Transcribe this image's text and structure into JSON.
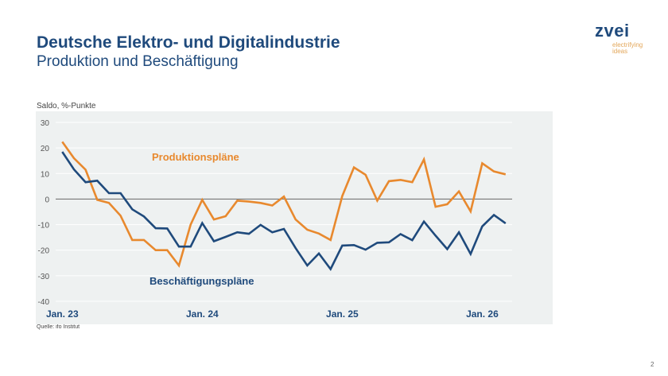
{
  "header": {
    "title": "Deutsche Elektro- und Digitalindustrie",
    "subtitle": "Produktion und Beschäftigung"
  },
  "logo": {
    "word": "zvei",
    "tagline_1": "electrifying",
    "tagline_2": "ideas"
  },
  "source": "Quelle: ifo Institut",
  "page_number": "2",
  "colors": {
    "orange": "#e8892e",
    "blue": "#1f4a7c",
    "plot_bg": "#eef1f1"
  },
  "chart_data": {
    "type": "line",
    "ylabel": "Saldo, %-Punkte",
    "ylim": [
      -40,
      30
    ],
    "yticks": [
      30,
      20,
      10,
      0,
      -10,
      -20,
      -30,
      -40
    ],
    "x_start": "Jan. 23",
    "x_ticks": [
      "Jan. 23",
      "Jan. 24",
      "Jan. 25",
      "Jan. 26"
    ],
    "x": [
      "2023-01",
      "2023-02",
      "2023-03",
      "2023-04",
      "2023-05",
      "2023-06",
      "2023-07",
      "2023-08",
      "2023-09",
      "2023-10",
      "2023-11",
      "2023-12",
      "2024-01",
      "2024-02",
      "2024-03",
      "2024-04",
      "2024-05",
      "2024-06",
      "2024-07",
      "2024-08",
      "2024-09",
      "2024-10",
      "2024-11",
      "2024-12",
      "2025-01",
      "2025-02",
      "2025-03",
      "2025-04",
      "2025-05",
      "2025-06",
      "2025-07",
      "2025-08",
      "2025-09",
      "2025-10",
      "2025-11",
      "2025-12",
      "2026-01",
      "2026-02",
      "2026-03"
    ],
    "grid": true,
    "series": [
      {
        "name": "Produktionspläne",
        "color": "#e8892e",
        "values": [
          22.4,
          16,
          11.5,
          -0.3,
          -1.5,
          -6.5,
          -16,
          -16,
          -20,
          -20,
          -26,
          -10,
          -0.3,
          -8,
          -6.7,
          -0.6,
          -1,
          -1.5,
          -2.5,
          1,
          -8,
          -12,
          -13.5,
          -16,
          1.2,
          12.4,
          9.5,
          -0.6,
          7,
          7.5,
          6.6,
          15.5,
          -3,
          -2,
          3,
          -4.8,
          14,
          10.8,
          9.7
        ]
      },
      {
        "name": "Beschäftigungspläne",
        "color": "#1f4a7c",
        "values": [
          18.5,
          11.6,
          6.6,
          7.2,
          2.3,
          2.3,
          -4,
          -6.8,
          -11.4,
          -11.5,
          -18.6,
          -18.6,
          -9.4,
          -16.5,
          -14.8,
          -13,
          -13.6,
          -10.1,
          -13,
          -11.7,
          -19.2,
          -26,
          -21.3,
          -27.4,
          -18.2,
          -18,
          -19.8,
          -17.1,
          -16.9,
          -13.7,
          -16.1,
          -8.8,
          -14.3,
          -19.6,
          -13,
          -21.5,
          -10.7,
          -6.2,
          -9.5
        ]
      }
    ]
  }
}
